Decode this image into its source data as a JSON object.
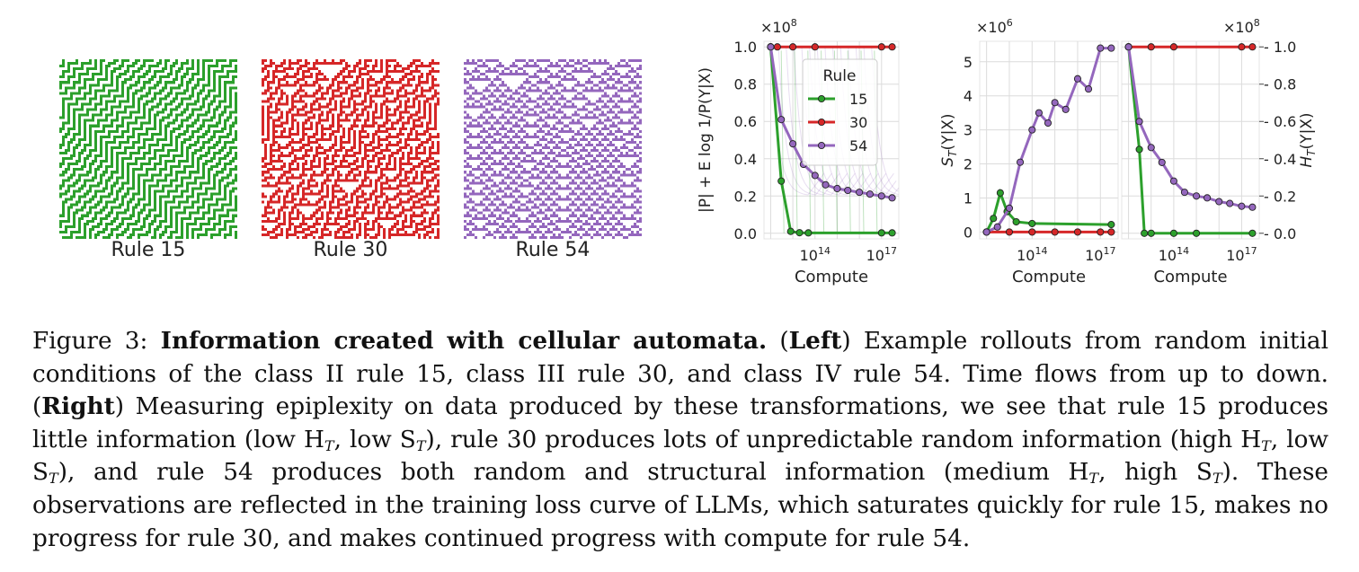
{
  "automata": [
    {
      "label": "Rule 15",
      "rule": 15,
      "color": "#2ca02c"
    },
    {
      "label": "Rule 30",
      "rule": 30,
      "color": "#d62728"
    },
    {
      "label": "Rule 54",
      "rule": 54,
      "color": "#9467bd"
    }
  ],
  "colors": {
    "rule15": "#2ca02c",
    "rule30": "#d62728",
    "rule54": "#9467bd",
    "grid": "#dcdcdc"
  },
  "chart_data": [
    {
      "type": "line",
      "xlabel": "Compute",
      "ylabel": "|P| + E log 1/P(Y|X)",
      "x_scale": "log",
      "x_ticks": [
        "10^14",
        "10^17"
      ],
      "y_ticks": [
        "0.0",
        "0.2",
        "0.4",
        "0.6",
        "0.8",
        "1.0"
      ],
      "y_multiplier": "×10^8",
      "legend": {
        "title": "Rule",
        "placement": "top-right",
        "entries": [
          "15",
          "30",
          "54"
        ]
      },
      "series": [
        {
          "name": "15",
          "x": [
            1000000000000.0,
            3000000000000.0,
            8000000000000.0,
            20000000000000.0,
            50000000000000.0,
            1e+17,
            3e+17
          ],
          "y": [
            1.0,
            0.28,
            0.01,
            0.003,
            0.002,
            0.002,
            0.002
          ]
        },
        {
          "name": "30",
          "x": [
            1000000000000.0,
            2000000000000.0,
            10000000000000.0,
            100000000000000.0,
            1e+17,
            3e+17
          ],
          "y": [
            1.0,
            1.0,
            1.0,
            1.0,
            1.0,
            1.0
          ]
        },
        {
          "name": "54",
          "x": [
            1000000000000.0,
            3000000000000.0,
            10000000000000.0,
            30000000000000.0,
            100000000000000.0,
            300000000000000.0,
            1000000000000000.0,
            3000000000000000.0,
            1e+16,
            3e+16,
            1e+17,
            3e+17
          ],
          "y": [
            1.0,
            0.61,
            0.48,
            0.37,
            0.31,
            0.26,
            0.24,
            0.23,
            0.22,
            0.21,
            0.2,
            0.19
          ]
        }
      ]
    },
    {
      "type": "line",
      "xlabel": "Compute",
      "ylabel": "S_T(Y|X)",
      "x_scale": "log",
      "x_ticks": [
        "10^14",
        "10^17"
      ],
      "y_ticks": [
        "0",
        "1",
        "2",
        "3",
        "4",
        "5"
      ],
      "y_multiplier": "×10^6",
      "series": [
        {
          "name": "15",
          "x": [
            1000000000000.0,
            2000000000000.0,
            4000000000000.0,
            8000000000000.0,
            20000000000000.0,
            100000000000000.0,
            3e+17
          ],
          "y": [
            0.0,
            0.4,
            1.15,
            0.6,
            0.3,
            0.25,
            0.22
          ]
        },
        {
          "name": "30",
          "x": [
            1000000000000.0,
            10000000000000.0,
            100000000000000.0,
            1000000000000000.0,
            1e+16,
            1e+17,
            3e+17
          ],
          "y": [
            0.0,
            0.0,
            0.0,
            0.0,
            0.0,
            0.0,
            0.0
          ]
        },
        {
          "name": "54",
          "x": [
            1000000000000.0,
            3000000000000.0,
            10000000000000.0,
            30000000000000.0,
            100000000000000.0,
            200000000000000.0,
            500000000000000.0,
            1000000000000000.0,
            3000000000000000.0,
            1e+16,
            3e+16,
            1e+17,
            3e+17
          ],
          "y": [
            0.0,
            0.15,
            0.7,
            2.05,
            3.0,
            3.5,
            3.2,
            3.8,
            3.6,
            4.5,
            4.2,
            5.4,
            5.4
          ]
        }
      ]
    },
    {
      "type": "line",
      "xlabel": "Compute",
      "ylabel": "H_T(Y|X)",
      "x_scale": "log",
      "x_ticks": [
        "10^14",
        "10^17"
      ],
      "y_ticks": [
        "0.0",
        "0.2",
        "0.4",
        "0.6",
        "0.8",
        "1.0"
      ],
      "y_multiplier": "×10^8",
      "series": [
        {
          "name": "15",
          "x": [
            1000000000000.0,
            3000000000000.0,
            5000000000000.0,
            10000000000000.0,
            100000000000000.0,
            1000000000000000.0,
            3e+17
          ],
          "y": [
            1.0,
            0.45,
            0.0,
            0.0,
            0.0,
            0.0,
            0.0
          ]
        },
        {
          "name": "30",
          "x": [
            1000000000000.0,
            10000000000000.0,
            100000000000000.0,
            1e+17,
            3e+17
          ],
          "y": [
            1.0,
            1.0,
            1.0,
            1.0,
            1.0
          ]
        },
        {
          "name": "54",
          "x": [
            1000000000000.0,
            3000000000000.0,
            10000000000000.0,
            30000000000000.0,
            100000000000000.0,
            300000000000000.0,
            1000000000000000.0,
            3000000000000000.0,
            1e+16,
            3e+16,
            1e+17,
            3e+17
          ],
          "y": [
            1.0,
            0.6,
            0.46,
            0.38,
            0.28,
            0.22,
            0.2,
            0.19,
            0.17,
            0.16,
            0.145,
            0.14
          ]
        }
      ]
    }
  ],
  "caption": {
    "figure": "Figure 3:",
    "title": "Information created with cellular automata.",
    "left_tag": "Left",
    "left_text": " Example rollouts from random initial conditions of the class II rule 15, class III rule 30, and class IV rule 54.  Time flows from up to down. ",
    "right_tag": "Right",
    "right_text_1": " Measuring epiplexity on data produced by these transformations, we see that rule 15 produces little information (low H",
    "t1": "T",
    "right_text_2": ", low S",
    "t2": "T",
    "right_text_3": "), rule 30 produces lots of unpredictable random information (high H",
    "t3": "T",
    "right_text_4": ", low S",
    "t4": "T",
    "right_text_5": "), and rule 54 produces both random and structural information (medium H",
    "t5": "T",
    "right_text_6": ", high S",
    "t6": "T",
    "right_text_7": ").  These observations are reflected in the training loss curve of LLMs, which saturates quickly for rule 15, makes no progress for rule 30, and makes continued progress with compute for rule 54."
  }
}
